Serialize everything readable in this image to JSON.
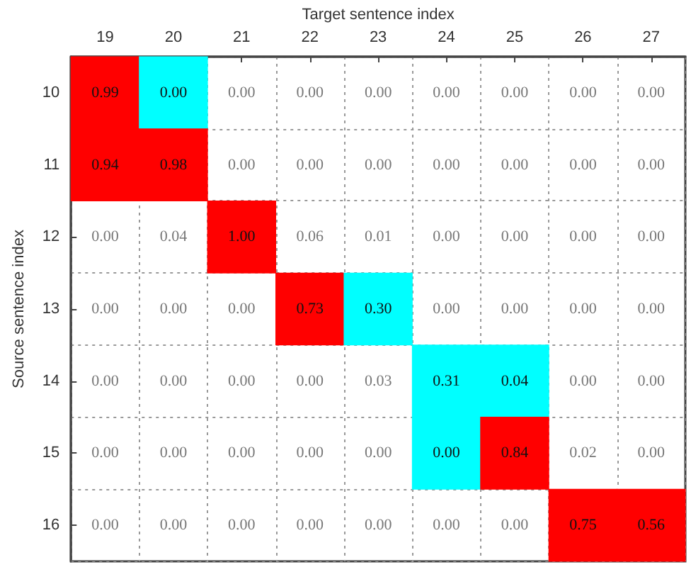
{
  "chart_data": {
    "type": "heatmap",
    "xlabel": "Target sentence index",
    "ylabel": "Source sentence index",
    "categories": [
      "19",
      "20",
      "21",
      "22",
      "23",
      "24",
      "25",
      "26",
      "27"
    ],
    "y_categories": [
      "10",
      "11",
      "12",
      "13",
      "14",
      "15",
      "16"
    ],
    "cells": [
      [
        0.99,
        0.0,
        0.0,
        0.0,
        0.0,
        0.0,
        0.0,
        0.0,
        0.0
      ],
      [
        0.94,
        0.98,
        0.0,
        0.0,
        0.0,
        0.0,
        0.0,
        0.0,
        0.0
      ],
      [
        0.0,
        0.04,
        1.0,
        0.06,
        0.01,
        0.0,
        0.0,
        0.0,
        0.0
      ],
      [
        0.0,
        0.0,
        0.0,
        0.73,
        0.3,
        0.0,
        0.0,
        0.0,
        0.0
      ],
      [
        0.0,
        0.0,
        0.0,
        0.0,
        0.03,
        0.31,
        0.04,
        0.0,
        0.0
      ],
      [
        0.0,
        0.0,
        0.0,
        0.0,
        0.0,
        0.0,
        0.84,
        0.02,
        0.0
      ],
      [
        0.0,
        0.0,
        0.0,
        0.0,
        0.0,
        0.0,
        0.0,
        0.75,
        0.56
      ]
    ],
    "colors": [
      [
        "#ff0000",
        "#00ffff",
        null,
        null,
        null,
        null,
        null,
        null,
        null
      ],
      [
        "#ff0000",
        "#ff0000",
        null,
        null,
        null,
        null,
        null,
        null,
        null
      ],
      [
        null,
        null,
        "#ff0000",
        null,
        null,
        null,
        null,
        null,
        null
      ],
      [
        null,
        null,
        null,
        "#ff0000",
        "#00ffff",
        null,
        null,
        null,
        null
      ],
      [
        null,
        null,
        null,
        null,
        null,
        "#00ffff",
        "#00ffff",
        null,
        null
      ],
      [
        null,
        null,
        null,
        null,
        null,
        "#00ffff",
        "#ff0000",
        null,
        null
      ],
      [
        null,
        null,
        null,
        null,
        null,
        null,
        null,
        "#ff0000",
        "#ff0000"
      ]
    ],
    "cell_labels": [
      [
        "0.99",
        "0.00",
        "0.00",
        "0.00",
        "0.00",
        "0.00",
        "0.00",
        "0.00",
        "0.00"
      ],
      [
        "0.94",
        "0.98",
        "0.00",
        "0.00",
        "0.00",
        "0.00",
        "0.00",
        "0.00",
        "0.00"
      ],
      [
        "0.00",
        "0.04",
        "1.00",
        "0.06",
        "0.01",
        "0.00",
        "0.00",
        "0.00",
        "0.00"
      ],
      [
        "0.00",
        "0.00",
        "0.00",
        "0.73",
        "0.30",
        "0.00",
        "0.00",
        "0.00",
        "0.00"
      ],
      [
        "0.00",
        "0.00",
        "0.00",
        "0.00",
        "0.03",
        "0.31",
        "0.04",
        "0.00",
        "0.00"
      ],
      [
        "0.00",
        "0.00",
        "0.00",
        "0.00",
        "0.00",
        "0.00",
        "0.84",
        "0.02",
        "0.00"
      ],
      [
        "0.00",
        "0.00",
        "0.00",
        "0.00",
        "0.00",
        "0.00",
        "0.00",
        "0.75",
        "0.56"
      ]
    ],
    "grid": true
  }
}
